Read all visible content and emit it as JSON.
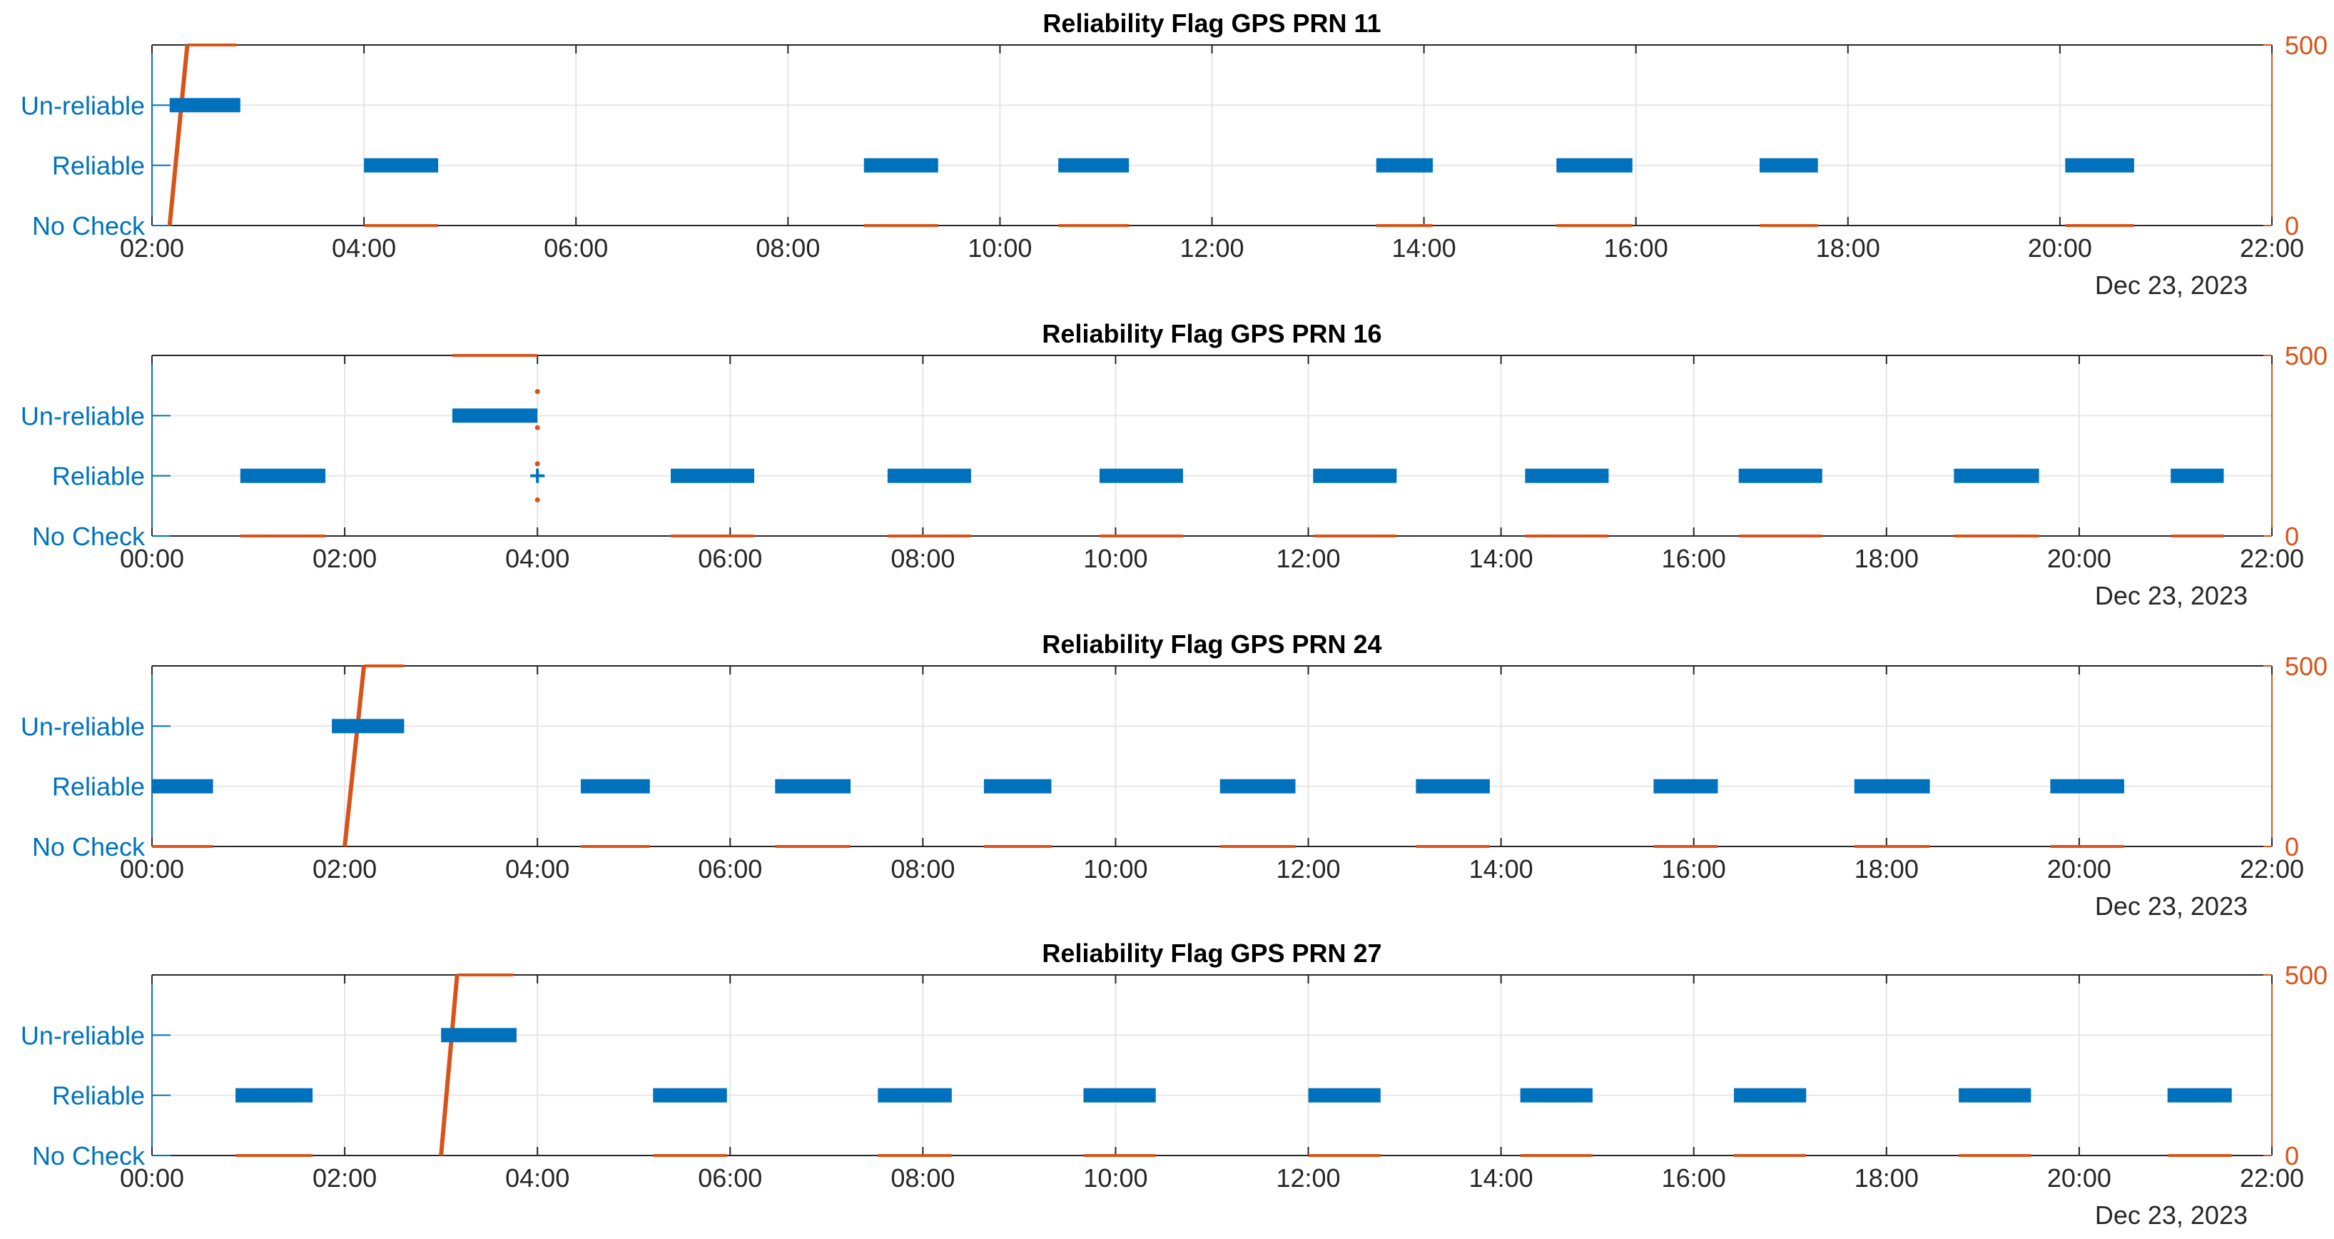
{
  "figure": {
    "background": "#ffffff"
  },
  "colors": {
    "flag": "#0072BD",
    "secondary": "#D95319",
    "axis": "#262626",
    "grid": "#e6e6e6"
  },
  "chart_data": [
    {
      "type": "scatter",
      "title": "Reliability Flag GPS PRN 11",
      "date_label": "Dec 23, 2023",
      "xlim": [
        "02:00",
        "22:00"
      ],
      "x_ticks": [
        "02:00",
        "04:00",
        "06:00",
        "08:00",
        "10:00",
        "12:00",
        "14:00",
        "16:00",
        "18:00",
        "20:00",
        "22:00"
      ],
      "y_left": {
        "categories": [
          "No Check",
          "Reliable",
          "Un-reliable"
        ],
        "ylim": [
          0,
          3
        ]
      },
      "y_right": {
        "ylim": [
          0,
          500
        ],
        "ticks": [
          "0",
          "500"
        ]
      },
      "grid": true,
      "flag_segments": [
        {
          "start": "02:10",
          "end": "02:50",
          "level": "Un-reliable"
        },
        {
          "start": "04:00",
          "end": "04:42",
          "level": "Reliable"
        },
        {
          "start": "08:43",
          "end": "09:25",
          "level": "Reliable"
        },
        {
          "start": "10:33",
          "end": "11:13",
          "level": "Reliable"
        },
        {
          "start": "13:33",
          "end": "14:05",
          "level": "Reliable"
        },
        {
          "start": "15:15",
          "end": "15:58",
          "level": "Reliable"
        },
        {
          "start": "17:10",
          "end": "17:43",
          "level": "Reliable"
        },
        {
          "start": "20:03",
          "end": "20:42",
          "level": "Reliable"
        }
      ],
      "right_series": {
        "ramps": [
          {
            "x": [
              "02:10",
              "02:20"
            ],
            "y": [
              0,
              500
            ]
          }
        ],
        "flat_lines": [
          {
            "start": "02:20",
            "end": "02:48",
            "value": 500
          },
          {
            "start": "04:00",
            "end": "04:42",
            "value": 0
          },
          {
            "start": "08:43",
            "end": "09:25",
            "value": 0
          },
          {
            "start": "10:33",
            "end": "11:13",
            "value": 0
          },
          {
            "start": "13:33",
            "end": "14:05",
            "value": 0
          },
          {
            "start": "15:15",
            "end": "15:58",
            "value": 0
          },
          {
            "start": "17:10",
            "end": "17:43",
            "value": 0
          },
          {
            "start": "20:03",
            "end": "20:42",
            "value": 0
          }
        ],
        "points": []
      }
    },
    {
      "type": "scatter",
      "title": "Reliability Flag GPS PRN 16",
      "date_label": "Dec 23, 2023",
      "xlim": [
        "00:00",
        "22:00"
      ],
      "x_ticks": [
        "00:00",
        "02:00",
        "04:00",
        "06:00",
        "08:00",
        "10:00",
        "12:00",
        "14:00",
        "16:00",
        "18:00",
        "20:00",
        "22:00"
      ],
      "y_left": {
        "categories": [
          "No Check",
          "Reliable",
          "Un-reliable"
        ],
        "ylim": [
          0,
          3
        ]
      },
      "y_right": {
        "ylim": [
          0,
          500
        ],
        "ticks": [
          "0",
          "500"
        ]
      },
      "grid": true,
      "flag_segments": [
        {
          "start": "00:55",
          "end": "01:48",
          "level": "Reliable"
        },
        {
          "start": "03:07",
          "end": "04:00",
          "level": "Un-reliable"
        },
        {
          "start": "04:00",
          "end": "04:01",
          "level": "Reliable"
        },
        {
          "start": "05:23",
          "end": "06:15",
          "level": "Reliable"
        },
        {
          "start": "07:38",
          "end": "08:30",
          "level": "Reliable"
        },
        {
          "start": "09:50",
          "end": "10:42",
          "level": "Reliable"
        },
        {
          "start": "12:03",
          "end": "12:55",
          "level": "Reliable"
        },
        {
          "start": "14:15",
          "end": "15:07",
          "level": "Reliable"
        },
        {
          "start": "16:28",
          "end": "17:20",
          "level": "Reliable"
        },
        {
          "start": "18:42",
          "end": "19:35",
          "level": "Reliable"
        },
        {
          "start": "20:57",
          "end": "21:30",
          "level": "Reliable"
        }
      ],
      "right_series": {
        "ramps": [],
        "flat_lines": [
          {
            "start": "03:07",
            "end": "04:00",
            "value": 500
          },
          {
            "start": "00:55",
            "end": "01:48",
            "value": 0
          },
          {
            "start": "05:23",
            "end": "06:15",
            "value": 0
          },
          {
            "start": "07:38",
            "end": "08:30",
            "value": 0
          },
          {
            "start": "09:50",
            "end": "10:42",
            "value": 0
          },
          {
            "start": "12:03",
            "end": "12:55",
            "value": 0
          },
          {
            "start": "14:15",
            "end": "15:07",
            "value": 0
          },
          {
            "start": "16:28",
            "end": "17:20",
            "value": 0
          },
          {
            "start": "18:42",
            "end": "19:35",
            "value": 0
          },
          {
            "start": "20:57",
            "end": "21:30",
            "value": 0
          }
        ],
        "points": [
          {
            "x": "04:00",
            "y": 400
          },
          {
            "x": "04:00",
            "y": 300
          },
          {
            "x": "04:00",
            "y": 200
          },
          {
            "x": "04:00",
            "y": 100
          }
        ]
      }
    },
    {
      "type": "scatter",
      "title": "Reliability Flag GPS PRN 24",
      "date_label": "Dec 23, 2023",
      "xlim": [
        "00:00",
        "22:00"
      ],
      "x_ticks": [
        "00:00",
        "02:00",
        "04:00",
        "06:00",
        "08:00",
        "10:00",
        "12:00",
        "14:00",
        "16:00",
        "18:00",
        "20:00",
        "22:00"
      ],
      "y_left": {
        "categories": [
          "No Check",
          "Reliable",
          "Un-reliable"
        ],
        "ylim": [
          0,
          3
        ]
      },
      "y_right": {
        "ylim": [
          0,
          500
        ],
        "ticks": [
          "0",
          "500"
        ]
      },
      "grid": true,
      "flag_segments": [
        {
          "start": "00:00",
          "end": "00:38",
          "level": "Reliable"
        },
        {
          "start": "01:52",
          "end": "02:37",
          "level": "Un-reliable"
        },
        {
          "start": "04:27",
          "end": "05:10",
          "level": "Reliable"
        },
        {
          "start": "06:28",
          "end": "07:15",
          "level": "Reliable"
        },
        {
          "start": "08:38",
          "end": "09:20",
          "level": "Reliable"
        },
        {
          "start": "11:05",
          "end": "11:52",
          "level": "Reliable"
        },
        {
          "start": "13:07",
          "end": "13:53",
          "level": "Reliable"
        },
        {
          "start": "15:35",
          "end": "16:15",
          "level": "Reliable"
        },
        {
          "start": "17:40",
          "end": "18:27",
          "level": "Reliable"
        },
        {
          "start": "19:42",
          "end": "20:28",
          "level": "Reliable"
        }
      ],
      "right_series": {
        "ramps": [
          {
            "x": [
              "02:00",
              "02:12"
            ],
            "y": [
              0,
              500
            ]
          }
        ],
        "flat_lines": [
          {
            "start": "02:12",
            "end": "02:37",
            "value": 500
          },
          {
            "start": "00:00",
            "end": "00:38",
            "value": 0
          },
          {
            "start": "04:27",
            "end": "05:10",
            "value": 0
          },
          {
            "start": "06:28",
            "end": "07:15",
            "value": 0
          },
          {
            "start": "08:38",
            "end": "09:20",
            "value": 0
          },
          {
            "start": "11:05",
            "end": "11:52",
            "value": 0
          },
          {
            "start": "13:07",
            "end": "13:53",
            "value": 0
          },
          {
            "start": "15:35",
            "end": "16:15",
            "value": 0
          },
          {
            "start": "17:40",
            "end": "18:27",
            "value": 0
          },
          {
            "start": "19:42",
            "end": "20:28",
            "value": 0
          }
        ],
        "points": []
      }
    },
    {
      "type": "scatter",
      "title": "Reliability Flag GPS PRN 27",
      "date_label": "Dec 23, 2023",
      "xlim": [
        "00:00",
        "22:00"
      ],
      "x_ticks": [
        "00:00",
        "02:00",
        "04:00",
        "06:00",
        "08:00",
        "10:00",
        "12:00",
        "14:00",
        "16:00",
        "18:00",
        "20:00",
        "22:00"
      ],
      "y_left": {
        "categories": [
          "No Check",
          "Reliable",
          "Un-reliable"
        ],
        "ylim": [
          0,
          3
        ]
      },
      "y_right": {
        "ylim": [
          0,
          500
        ],
        "ticks": [
          "0",
          "500"
        ]
      },
      "grid": true,
      "flag_segments": [
        {
          "start": "00:52",
          "end": "01:40",
          "level": "Reliable"
        },
        {
          "start": "03:00",
          "end": "03:47",
          "level": "Un-reliable"
        },
        {
          "start": "05:12",
          "end": "05:58",
          "level": "Reliable"
        },
        {
          "start": "07:32",
          "end": "08:18",
          "level": "Reliable"
        },
        {
          "start": "09:40",
          "end": "10:25",
          "level": "Reliable"
        },
        {
          "start": "12:00",
          "end": "12:45",
          "level": "Reliable"
        },
        {
          "start": "14:12",
          "end": "14:57",
          "level": "Reliable"
        },
        {
          "start": "16:25",
          "end": "17:10",
          "level": "Reliable"
        },
        {
          "start": "18:45",
          "end": "19:30",
          "level": "Reliable"
        },
        {
          "start": "20:55",
          "end": "21:35",
          "level": "Reliable"
        }
      ],
      "right_series": {
        "ramps": [
          {
            "x": [
              "03:00",
              "03:10"
            ],
            "y": [
              0,
              500
            ]
          }
        ],
        "flat_lines": [
          {
            "start": "03:10",
            "end": "03:45",
            "value": 500
          },
          {
            "start": "00:52",
            "end": "01:40",
            "value": 0
          },
          {
            "start": "05:12",
            "end": "05:58",
            "value": 0
          },
          {
            "start": "07:32",
            "end": "08:18",
            "value": 0
          },
          {
            "start": "09:40",
            "end": "10:25",
            "value": 0
          },
          {
            "start": "12:00",
            "end": "12:45",
            "value": 0
          },
          {
            "start": "14:12",
            "end": "14:57",
            "value": 0
          },
          {
            "start": "16:25",
            "end": "17:10",
            "value": 0
          },
          {
            "start": "18:45",
            "end": "19:30",
            "value": 0
          },
          {
            "start": "20:55",
            "end": "21:35",
            "value": 0
          }
        ],
        "points": []
      }
    }
  ]
}
